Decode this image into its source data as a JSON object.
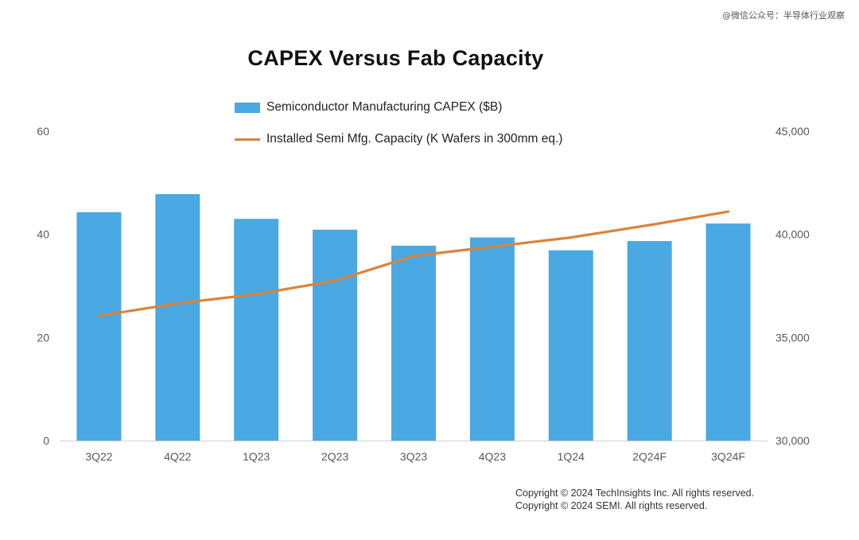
{
  "watermark": "@微信公众号：半导体行业观察",
  "chart_data": {
    "type": "bar",
    "title": "CAPEX Versus Fab Capacity",
    "categories": [
      "3Q22",
      "4Q22",
      "1Q23",
      "2Q23",
      "3Q23",
      "4Q23",
      "1Q24",
      "2Q24F",
      "3Q24F"
    ],
    "series": [
      {
        "name": "Semiconductor Manufacturing CAPEX ($B)",
        "type": "bar",
        "axis": "left",
        "color": "#4AA8E2",
        "values": [
          44.3,
          47.8,
          43.0,
          40.9,
          37.8,
          39.4,
          36.9,
          38.7,
          42.1
        ]
      },
      {
        "name": "Installed Semi Mfg. Capacity (K Wafers in 300mm eq.)",
        "type": "line",
        "axis": "right",
        "color": "#D9843B",
        "values": [
          36050,
          36650,
          37100,
          37750,
          38950,
          39400,
          39850,
          40450,
          41100
        ]
      }
    ],
    "y_left": {
      "ylim": [
        0,
        60
      ],
      "ticks": [
        "0",
        "20",
        "40",
        "60"
      ]
    },
    "y_right": {
      "ylim": [
        30000,
        45000
      ],
      "ticks": [
        "30,000",
        "35,000",
        "40,000",
        "45,000"
      ]
    },
    "grid": false,
    "legend": "top"
  },
  "copyright": [
    "Copyright © 2024 TechInsights Inc.  All rights reserved.",
    "Copyright © 2024 SEMI.  All rights reserved."
  ]
}
